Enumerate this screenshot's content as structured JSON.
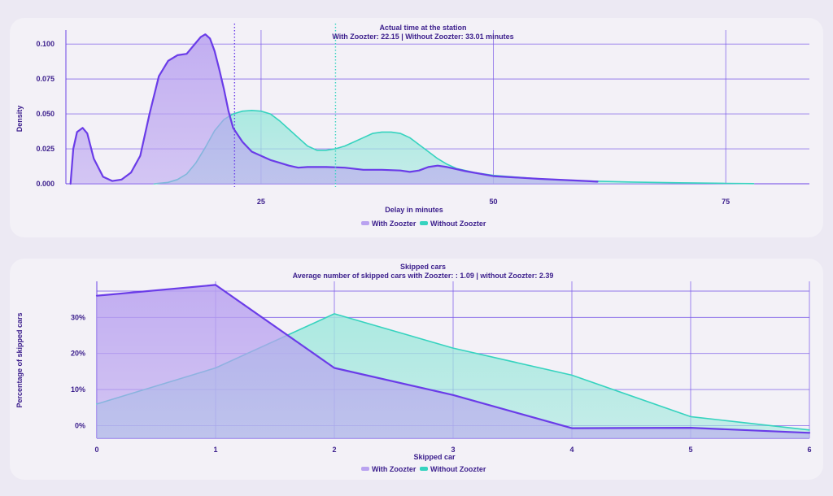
{
  "colors": {
    "with": "#6a3ce8",
    "with_fill": "#b9a2f0",
    "without": "#36d3bf",
    "without_fill": "#9fe8dd"
  },
  "chart_data": [
    {
      "type": "area",
      "title": "Actual time at the station",
      "subtitle": "With Zoozter: 22.15 | Without Zoozter: 33.01 minutes",
      "xlabel": "Delay in minutes",
      "ylabel": "Density",
      "xlim": [
        4,
        84
      ],
      "ylim": [
        0,
        0.11
      ],
      "x_ticks": [
        25,
        50,
        75
      ],
      "y_ticks": [
        0.0,
        0.025,
        0.05,
        0.075,
        0.1
      ],
      "y_tick_labels": [
        "0.000",
        "0.025",
        "0.050",
        "0.075",
        "0.100"
      ],
      "legend_position": "bottom-center",
      "grid": true,
      "vlines": [
        {
          "x": 22.15,
          "series": "With Zoozter"
        },
        {
          "x": 33.01,
          "series": "Without Zoozter"
        }
      ],
      "series": [
        {
          "name": "With Zoozter",
          "x": [
            4.5,
            4.8,
            5.2,
            5.8,
            6.3,
            7,
            8,
            9,
            10,
            11,
            12,
            13,
            14,
            15,
            16,
            17,
            17.5,
            18,
            18.5,
            19,
            19.5,
            20,
            20.5,
            21,
            21.5,
            22,
            23,
            24,
            25,
            26,
            27,
            28,
            29,
            30,
            32,
            34,
            36,
            38,
            40,
            41,
            42,
            43,
            44,
            45,
            47,
            50,
            55,
            60,
            61.2
          ],
          "y": [
            0.0,
            0.025,
            0.037,
            0.04,
            0.036,
            0.018,
            0.005,
            0.002,
            0.003,
            0.008,
            0.02,
            0.05,
            0.077,
            0.088,
            0.092,
            0.093,
            0.097,
            0.101,
            0.105,
            0.107,
            0.104,
            0.095,
            0.082,
            0.068,
            0.052,
            0.04,
            0.03,
            0.023,
            0.02,
            0.017,
            0.015,
            0.013,
            0.0115,
            0.012,
            0.012,
            0.0115,
            0.01,
            0.01,
            0.0095,
            0.0085,
            0.0095,
            0.012,
            0.013,
            0.012,
            0.009,
            0.0055,
            0.0035,
            0.002,
            0.0015
          ]
        },
        {
          "name": "Without Zoozter",
          "x": [
            13.5,
            15,
            16,
            17,
            18,
            19,
            20,
            21,
            22,
            23,
            24,
            25,
            26,
            27,
            28,
            29,
            30,
            31,
            32,
            33,
            34,
            35,
            36,
            37,
            38,
            39,
            40,
            41,
            42,
            43,
            44,
            45,
            46,
            48,
            50,
            55,
            60,
            65,
            70,
            75,
            78
          ],
          "y": [
            0.0,
            0.001,
            0.003,
            0.007,
            0.015,
            0.026,
            0.038,
            0.046,
            0.05,
            0.052,
            0.0525,
            0.052,
            0.05,
            0.045,
            0.039,
            0.033,
            0.027,
            0.024,
            0.024,
            0.025,
            0.027,
            0.03,
            0.033,
            0.036,
            0.037,
            0.037,
            0.036,
            0.033,
            0.028,
            0.023,
            0.018,
            0.014,
            0.011,
            0.008,
            0.006,
            0.0035,
            0.002,
            0.0012,
            0.0007,
            0.0003,
            0.0001
          ]
        }
      ]
    },
    {
      "type": "area",
      "title": "Skipped cars",
      "subtitle": "Average number of skipped cars with Zoozter: : 1.09 | without Zoozter: 2.39",
      "xlabel": "Skipped car",
      "ylabel": "Percentage of skipped cars",
      "xlim": [
        0,
        6
      ],
      "ylim": [
        -0.035,
        0.4
      ],
      "x_ticks": [
        0,
        1,
        2,
        3,
        4,
        5,
        6
      ],
      "y_ticks": [
        0.0,
        0.1,
        0.2,
        0.3
      ],
      "y_tick_labels": [
        "0%",
        "10%",
        "20%",
        "30%"
      ],
      "legend_position": "bottom-center",
      "grid": true,
      "series": [
        {
          "name": "With Zoozter",
          "x": [
            0,
            1,
            2,
            3,
            4,
            5,
            6
          ],
          "y": [
            0.36,
            0.39,
            0.16,
            0.085,
            -0.007,
            -0.006,
            -0.02
          ]
        },
        {
          "name": "Without Zoozter",
          "x": [
            0,
            1,
            2,
            3,
            4,
            5,
            6
          ],
          "y": [
            0.06,
            0.16,
            0.31,
            0.215,
            0.14,
            0.025,
            -0.012
          ]
        }
      ]
    }
  ]
}
